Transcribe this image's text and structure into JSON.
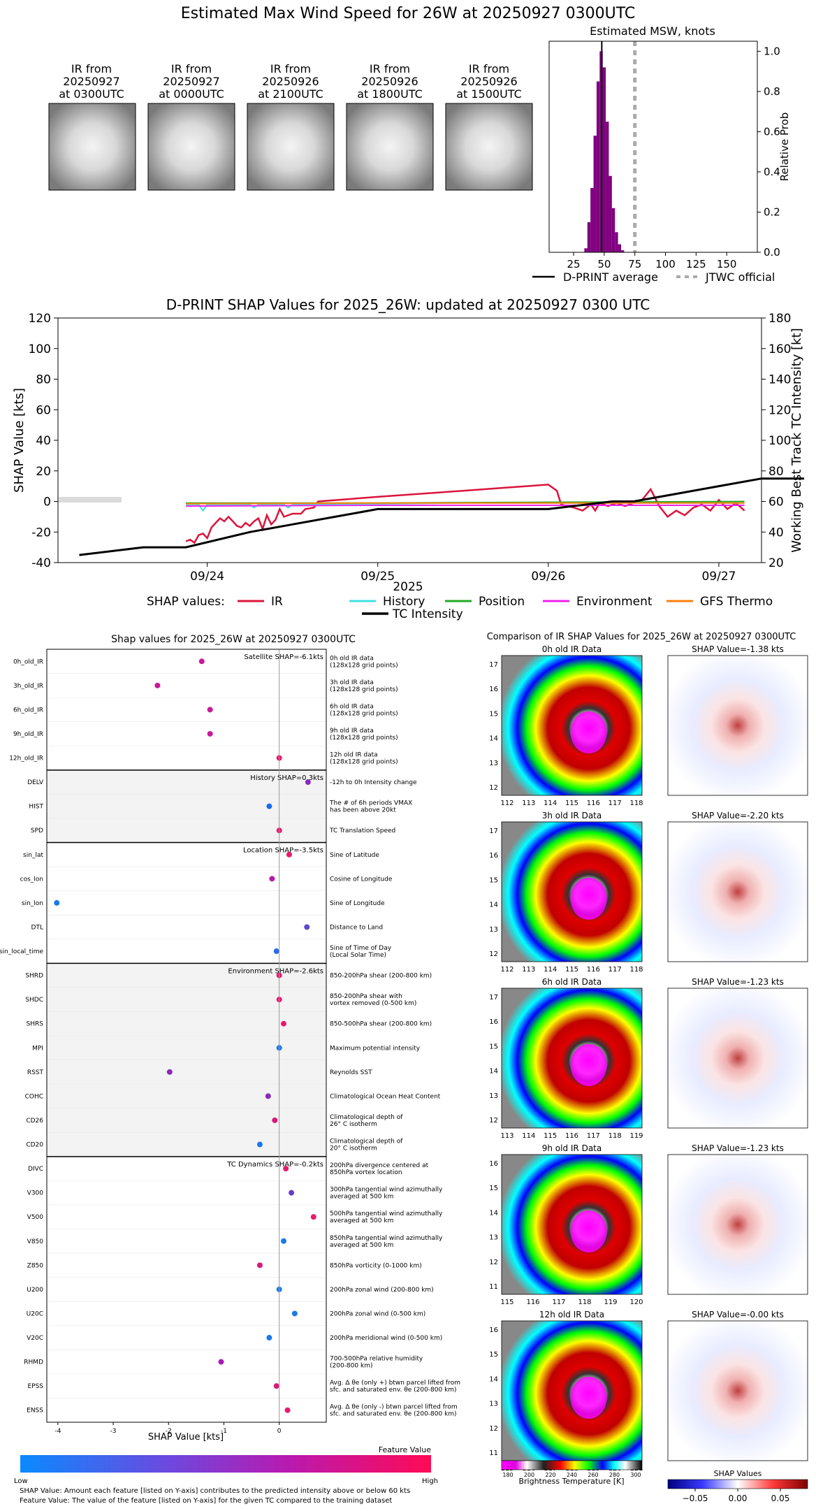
{
  "page_title": "Estimated Max Wind Speed for 26W at 20250927 0300UTC",
  "ir_panels": [
    {
      "line1": "IR from",
      "line2": "20250927",
      "line3": "at 0300UTC"
    },
    {
      "line1": "IR from",
      "line2": "20250927",
      "line3": "at 0000UTC"
    },
    {
      "line1": "IR from",
      "line2": "20250926",
      "line3": "at 2100UTC"
    },
    {
      "line1": "IR from",
      "line2": "20250926",
      "line3": "at 1800UTC"
    },
    {
      "line1": "IR from",
      "line2": "20250926",
      "line3": "at 1500UTC"
    }
  ],
  "chart_data": [
    {
      "type": "bar",
      "title": "Estimated MSW, knots",
      "ylabel": "Relative Prob",
      "xlim": [
        5,
        175
      ],
      "ylim": [
        0,
        1.05
      ],
      "xticks": [
        25,
        50,
        75,
        100,
        125,
        150
      ],
      "yticks": [
        0.0,
        0.2,
        0.4,
        0.6,
        0.8,
        1.0
      ],
      "bin_width": 2.5,
      "bins": [
        {
          "x": 35,
          "p": 0.02
        },
        {
          "x": 37.5,
          "p": 0.15
        },
        {
          "x": 40,
          "p": 0.32
        },
        {
          "x": 42.5,
          "p": 0.58
        },
        {
          "x": 45,
          "p": 0.85
        },
        {
          "x": 47.5,
          "p": 1.0
        },
        {
          "x": 50,
          "p": 0.92
        },
        {
          "x": 52.5,
          "p": 0.65
        },
        {
          "x": 55,
          "p": 0.38
        },
        {
          "x": 57.5,
          "p": 0.22
        },
        {
          "x": 60,
          "p": 0.1
        },
        {
          "x": 62.5,
          "p": 0.04
        },
        {
          "x": 65,
          "p": 0.01
        }
      ],
      "dprint_average": 48,
      "jtwc_official": 75,
      "bar_color": "#800080",
      "legend": {
        "dprint": "D-PRINT average",
        "jtwc": "JTWC official"
      }
    },
    {
      "type": "line",
      "title": "D-PRINT SHAP Values for 2025_26W: updated at 20250927 0300 UTC",
      "xlabel": "2025",
      "ylabel_left": "SHAP Value [kts]",
      "ylabel_right": "Working Best Track TC Intensity [kt]",
      "ylim_left": [
        -40,
        120
      ],
      "ylim_right": [
        20,
        180
      ],
      "yticks_left": [
        -40,
        -20,
        0,
        20,
        40,
        60,
        80,
        100,
        120
      ],
      "yticks_right": [
        20,
        40,
        60,
        80,
        100,
        120,
        140,
        160,
        180
      ],
      "xlim_days": [
        "09/23 03:00",
        "09/27 06:00"
      ],
      "xticks": [
        "09/24",
        "09/25",
        "09/26",
        "09/27"
      ],
      "legend_prefix": "SHAP values:",
      "series": [
        {
          "name": "IR",
          "color": "#dc143c",
          "points": [
            [
              1.75,
              -26
            ],
            [
              1.8,
              -25
            ],
            [
              1.85,
              -27
            ],
            [
              1.9,
              -22
            ],
            [
              1.95,
              -21
            ],
            [
              2.0,
              -24
            ],
            [
              2.05,
              -17
            ],
            [
              2.1,
              -14
            ],
            [
              2.15,
              -11
            ],
            [
              2.2,
              -13
            ],
            [
              2.25,
              -10
            ],
            [
              2.3,
              -13
            ],
            [
              2.35,
              -16
            ],
            [
              2.4,
              -17
            ],
            [
              2.45,
              -14
            ],
            [
              2.5,
              -16
            ],
            [
              2.55,
              -13
            ],
            [
              2.6,
              -11
            ],
            [
              2.65,
              -18
            ],
            [
              2.7,
              -9
            ],
            [
              2.75,
              -15
            ],
            [
              2.8,
              -12
            ],
            [
              2.85,
              -5
            ],
            [
              2.9,
              -10
            ],
            [
              3.0,
              -8
            ],
            [
              3.1,
              -8
            ],
            [
              3.15,
              -5
            ],
            [
              3.25,
              -4
            ],
            [
              3.3,
              0
            ],
            [
              4.0,
              3
            ],
            [
              5.0,
              7
            ],
            [
              5.5,
              9
            ],
            [
              6.0,
              11
            ],
            [
              6.1,
              7
            ],
            [
              6.15,
              -2
            ],
            [
              6.3,
              -4
            ],
            [
              6.4,
              -6
            ],
            [
              6.5,
              -2
            ],
            [
              6.55,
              -6
            ],
            [
              6.6,
              -1
            ],
            [
              6.7,
              -3
            ],
            [
              6.8,
              -1
            ],
            [
              6.9,
              -3
            ],
            [
              7.0,
              -1
            ],
            [
              7.1,
              1
            ],
            [
              7.2,
              8
            ],
            [
              7.3,
              -3
            ],
            [
              7.4,
              -10
            ],
            [
              7.5,
              -6
            ],
            [
              7.6,
              -9
            ],
            [
              7.7,
              -4
            ],
            [
              7.8,
              -2
            ],
            [
              7.9,
              -6
            ],
            [
              8.0,
              1
            ],
            [
              8.1,
              -5
            ],
            [
              8.2,
              -1
            ],
            [
              8.3,
              -6
            ]
          ]
        },
        {
          "name": "History",
          "color": "#40e0e0",
          "points": [
            [
              1.75,
              -2
            ],
            [
              1.9,
              -2
            ],
            [
              1.95,
              -6
            ],
            [
              2.0,
              -2
            ],
            [
              2.5,
              -2
            ],
            [
              2.55,
              -4
            ],
            [
              2.6,
              -2
            ],
            [
              2.9,
              -2
            ],
            [
              2.95,
              -4
            ],
            [
              3.0,
              -2
            ],
            [
              5.0,
              -1
            ],
            [
              8.3,
              -1
            ]
          ]
        },
        {
          "name": "Position",
          "color": "#22aa22",
          "points": [
            [
              1.75,
              -1
            ],
            [
              4.0,
              -1
            ],
            [
              6.0,
              -0.5
            ],
            [
              8.3,
              0
            ]
          ]
        },
        {
          "name": "Environment",
          "color": "#ee22ee",
          "points": [
            [
              1.75,
              -3
            ],
            [
              4.0,
              -2.5
            ],
            [
              6.0,
              -2.5
            ],
            [
              8.3,
              -2.5
            ]
          ]
        },
        {
          "name": "GFS Thermo",
          "color": "#ff7f0e",
          "points": [
            [
              1.75,
              -1.5
            ],
            [
              4.0,
              -1
            ],
            [
              6.0,
              -1
            ],
            [
              8.3,
              -1
            ]
          ]
        }
      ],
      "tc_intensity": {
        "name": "TC Intensity",
        "color": "#000000",
        "points": [
          [
            0.5,
            25
          ],
          [
            1.25,
            30
          ],
          [
            1.75,
            30
          ],
          [
            2.5,
            40
          ],
          [
            3.0,
            45
          ],
          [
            3.5,
            50
          ],
          [
            4.0,
            55
          ],
          [
            5.0,
            55
          ],
          [
            6.0,
            55
          ],
          [
            6.75,
            60
          ],
          [
            7.0,
            60
          ],
          [
            7.5,
            65
          ],
          [
            8.0,
            70
          ],
          [
            8.5,
            75
          ],
          [
            9.0,
            75
          ]
        ]
      }
    }
  ],
  "shap_panel": {
    "title": "Shap values for 2025_26W at 20250927 0300UTC",
    "xlabel": "SHAP Value [kts]",
    "xticks": [
      -4,
      -3,
      -2,
      -1,
      0
    ],
    "xlim": [
      -4.2,
      0.85
    ],
    "groups": [
      {
        "label": "Satellite SHAP=-6.1kts",
        "shaded": false,
        "features": [
          {
            "name": "0h_old_IR",
            "desc1": "0h old IR data",
            "desc2": "(128x128 grid points)",
            "value": -1.4,
            "color": "#c81a9a"
          },
          {
            "name": "3h_old_IR",
            "desc1": "3h old IR data",
            "desc2": "(128x128 grid points)",
            "value": -2.2,
            "color": "#c81a9a"
          },
          {
            "name": "6h_old_IR",
            "desc1": "6h old IR data",
            "desc2": "(128x128 grid points)",
            "value": -1.25,
            "color": "#c81a9a"
          },
          {
            "name": "9h_old_IR",
            "desc1": "9h old IR data",
            "desc2": "(128x128 grid points)",
            "value": -1.25,
            "color": "#c81a9a"
          },
          {
            "name": "12h_old_IR",
            "desc1": "12h old IR data",
            "desc2": "(128x128 grid points)",
            "value": 0.0,
            "color": "#e81a6a"
          }
        ]
      },
      {
        "label": "History SHAP=0.3kts",
        "shaded": true,
        "features": [
          {
            "name": "DELV",
            "desc1": "-12h to 0h Intensity change",
            "desc2": "",
            "value": 0.52,
            "color": "#8a2ab8"
          },
          {
            "name": "HIST",
            "desc1": "The # of 6h periods VMAX",
            "desc2": "has been above 20kt",
            "value": -0.18,
            "color": "#1a6ae8"
          },
          {
            "name": "SPD",
            "desc1": "TC Translation Speed",
            "desc2": "",
            "value": 0.0,
            "color": "#e81a6a"
          }
        ]
      },
      {
        "label": "Location SHAP=-3.5kts",
        "shaded": false,
        "features": [
          {
            "name": "sin_lat",
            "desc1": "Sine of Latitude",
            "desc2": "",
            "value": 0.18,
            "color": "#e81a6a"
          },
          {
            "name": "cos_lon",
            "desc1": "Cosine of Longitude",
            "desc2": "",
            "value": -0.13,
            "color": "#b81aa8"
          },
          {
            "name": "sin_lon",
            "desc1": "Sine of Longitude",
            "desc2": "",
            "value": -4.02,
            "color": "#1a7ae8"
          },
          {
            "name": "DTL",
            "desc1": "Distance to Land",
            "desc2": "",
            "value": 0.5,
            "color": "#5a4ac8"
          },
          {
            "name": "sin_local_time",
            "desc1": "Sine of Time of Day",
            "desc2": "(Local Solar Time)",
            "value": -0.05,
            "color": "#2a6ae8"
          }
        ]
      },
      {
        "label": "Environment SHAP=-2.6kts",
        "shaded": true,
        "features": [
          {
            "name": "SHRD",
            "desc1": "850-200hPa shear (200-800 km)",
            "desc2": "",
            "value": 0.0,
            "color": "#e81a6a"
          },
          {
            "name": "SHDC",
            "desc1": "850-200hPa shear with",
            "desc2": "vortex removed (0-500 km)",
            "value": 0.0,
            "color": "#e81a6a"
          },
          {
            "name": "SHRS",
            "desc1": "850-500hPa shear (200-800 km)",
            "desc2": "",
            "value": 0.08,
            "color": "#e81a6a"
          },
          {
            "name": "MPI",
            "desc1": "Maximum potential intensity",
            "desc2": "",
            "value": 0.0,
            "color": "#1a7ae8"
          },
          {
            "name": "RSST",
            "desc1": "Reynolds SST",
            "desc2": "",
            "value": -1.98,
            "color": "#8a2ab8"
          },
          {
            "name": "COHC",
            "desc1": "Climatological Ocean Heat Content",
            "desc2": "",
            "value": -0.2,
            "color": "#8a2ab8"
          },
          {
            "name": "CD26",
            "desc1": "Climatological depth of",
            "desc2": "26° C isotherm",
            "value": -0.08,
            "color": "#d81a7a"
          },
          {
            "name": "CD20",
            "desc1": "Climatological depth of",
            "desc2": "20° C isotherm",
            "value": -0.35,
            "color": "#1a7ae8"
          }
        ]
      },
      {
        "label": "TC Dynamics SHAP=-0.2kts",
        "shaded": false,
        "features": [
          {
            "name": "DIVC",
            "desc1": "200hPa divergence centered at",
            "desc2": "850hPa vortex location",
            "value": 0.12,
            "color": "#e81a6a"
          },
          {
            "name": "V300",
            "desc1": "300hPa tangential wind azimuthally",
            "desc2": "averaged at 500 km",
            "value": 0.22,
            "color": "#6a3ac8"
          },
          {
            "name": "V500",
            "desc1": "500hPa tangential wind azimuthally",
            "desc2": "averaged at 500 km",
            "value": 0.62,
            "color": "#e81a6a"
          },
          {
            "name": "V850",
            "desc1": "850hPa tangential wind azimuthally",
            "desc2": "averaged at 500 km",
            "value": 0.08,
            "color": "#1a7ae8"
          },
          {
            "name": "Z850",
            "desc1": "850hPa vorticity (0-1000 km)",
            "desc2": "",
            "value": -0.35,
            "color": "#d81a7a"
          },
          {
            "name": "U200",
            "desc1": "200hPa zonal wind (200-800 km)",
            "desc2": "",
            "value": 0.0,
            "color": "#1a7ae8"
          },
          {
            "name": "U20C",
            "desc1": "200hPa zonal wind (0-500 km)",
            "desc2": "",
            "value": 0.28,
            "color": "#1a7ae8"
          },
          {
            "name": "V20C",
            "desc1": "200hPa meridional wind (0-500 km)",
            "desc2": "",
            "value": -0.18,
            "color": "#1a7ae8"
          },
          {
            "name": "RHMD",
            "desc1": "700-500hPa relative humidity",
            "desc2": "(200-800 km)",
            "value": -1.05,
            "color": "#a81ab8"
          },
          {
            "name": "EPSS",
            "desc1": "Avg. Δ θe (only +) btwn parcel lifted from",
            "desc2": "sfc. and saturated env. θe (200-800 km)",
            "value": -0.05,
            "color": "#d81a7a"
          },
          {
            "name": "ENSS",
            "desc1": "Avg. Δ θe (only -) btwn parcel lifted from",
            "desc2": "sfc. and saturated env. θe (200-800 km)",
            "value": 0.15,
            "color": "#e81a6a"
          }
        ]
      }
    ],
    "colorbar": {
      "title": "Feature Value",
      "low": "Low",
      "high": "High",
      "color_low": "#0a8aff",
      "color_high": "#ff0a55"
    },
    "footnote1": "SHAP Value: Amount each feature [listed on Y-axis] contributes to the predicted intensity above or below 60 kts",
    "footnote2": "Feature Value: The value of the feature [listed on Y-axis] for the given TC compared to the training dataset"
  },
  "ir_compare": {
    "title": "Comparison of IR SHAP Values for 2025_26W at 20250927 0300UTC",
    "rows": [
      {
        "ir_title": "0h old IR Data",
        "shap_title": "SHAP Value=-1.38 kts",
        "xticks": [
          "112",
          "113",
          "114",
          "115",
          "116",
          "117",
          "118"
        ],
        "yticks": [
          "17",
          "16",
          "15",
          "14",
          "13",
          "12"
        ]
      },
      {
        "ir_title": "3h old IR Data",
        "shap_title": "SHAP Value=-2.20 kts",
        "xticks": [
          "112",
          "113",
          "114",
          "115",
          "116",
          "117",
          "118"
        ],
        "yticks": [
          "17",
          "16",
          "15",
          "14",
          "13",
          "12"
        ]
      },
      {
        "ir_title": "6h old IR Data",
        "shap_title": "SHAP Value=-1.23 kts",
        "xticks": [
          "113",
          "114",
          "115",
          "116",
          "117",
          "118",
          "119"
        ],
        "yticks": [
          "17",
          "16",
          "15",
          "14",
          "13",
          "12"
        ]
      },
      {
        "ir_title": "9h old IR Data",
        "shap_title": "SHAP Value=-1.23 kts",
        "xticks": [
          "115",
          "116",
          "117",
          "118",
          "119",
          "120"
        ],
        "yticks": [
          "16",
          "15",
          "14",
          "13",
          "12",
          "11"
        ]
      },
      {
        "ir_title": "12h old IR Data",
        "shap_title": "SHAP Value=-0.00 kts",
        "xticks": [
          "115",
          "116",
          "117",
          "118",
          "119",
          "120",
          "121"
        ],
        "yticks": [
          "16",
          "15",
          "14",
          "13",
          "12",
          "11"
        ]
      }
    ],
    "bt_colorbar": {
      "title": "Brightness Temperature [K]",
      "ticks": [
        "180",
        "200",
        "220",
        "240",
        "260",
        "280",
        "300"
      ]
    },
    "shap_colorbar": {
      "title": "SHAP Values",
      "ticks": [
        "−0.05",
        "0.00",
        "0.05"
      ]
    }
  }
}
